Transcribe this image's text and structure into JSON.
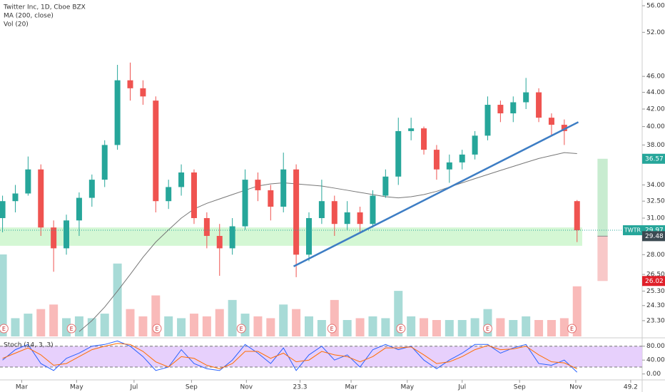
{
  "chart_data": {
    "type": "candlestick",
    "title": "Twitter Inc, 1D, Cboe BZX",
    "indicator_labels": [
      "MA (200, close)",
      "Vol (20)"
    ],
    "categories": [
      null,
      null,
      null,
      null,
      null,
      null,
      null,
      null,
      null,
      null,
      null,
      null,
      null,
      null,
      null,
      null,
      null,
      null,
      null,
      null,
      null,
      null,
      null,
      null,
      null,
      null,
      null,
      null,
      null,
      null,
      null,
      null,
      null,
      null,
      null,
      null,
      null,
      null,
      null,
      null,
      null,
      null,
      null,
      null,
      null,
      null
    ],
    "open": [
      31,
      32.5,
      33.2,
      35.5,
      30.2,
      28.5,
      30.8,
      32.8,
      34.5,
      38,
      45.5,
      44.5,
      43,
      32.5,
      33.8,
      35.2,
      31,
      29.5,
      28.5,
      30.3,
      34.5,
      33.5,
      32,
      35.5,
      28,
      31,
      32.5,
      30.5,
      31.5,
      30.5,
      33,
      34.8,
      39.5,
      39.8,
      37.5,
      35.5,
      36.2,
      37,
      39,
      42.5,
      41.5,
      42.8,
      44,
      41,
      40.2,
      32.5
    ],
    "high": [
      33,
      34,
      36.8,
      36,
      30.8,
      31.3,
      33.3,
      35,
      38.5,
      47.5,
      47.8,
      45.5,
      43.5,
      34.5,
      36,
      35.5,
      31.5,
      30.5,
      31,
      35.5,
      35.2,
      34,
      37.2,
      36,
      31.5,
      34.5,
      33,
      32.5,
      32,
      33.5,
      35.5,
      41,
      41,
      40,
      38,
      37,
      37.5,
      39.5,
      43.5,
      43,
      43.5,
      45.8,
      44.5,
      41.5,
      40.8,
      32.6
    ],
    "low": [
      29.8,
      31.5,
      33,
      29.5,
      26.7,
      28,
      29.5,
      32,
      33.8,
      37.5,
      43,
      42.5,
      31.5,
      31.8,
      33,
      30.5,
      28.5,
      26.4,
      28,
      30,
      32.5,
      30.8,
      31.5,
      26.3,
      27.5,
      30.5,
      29.5,
      30,
      29.7,
      30.2,
      32.8,
      34,
      38.5,
      37,
      34.5,
      34.2,
      35.5,
      36.5,
      38.5,
      40.5,
      40.5,
      42,
      40.5,
      39,
      38,
      29
    ],
    "close": [
      32.5,
      33.2,
      35.5,
      30.2,
      28.5,
      30.8,
      32.8,
      34.5,
      38,
      45.5,
      44.5,
      43.5,
      32.5,
      33.8,
      35.2,
      31,
      29.5,
      28.5,
      30.3,
      34.5,
      33.5,
      32,
      35.5,
      28,
      31,
      32.5,
      30.5,
      31.5,
      30.5,
      33,
      34.8,
      39.5,
      39.8,
      37.5,
      35.5,
      36.2,
      37,
      39,
      42.5,
      41.5,
      42.8,
      44,
      41,
      40.2,
      39.5,
      29.97
    ],
    "volume": [
      90,
      20,
      25,
      30,
      35,
      20,
      22,
      20,
      25,
      80,
      30,
      22,
      45,
      22,
      20,
      25,
      22,
      30,
      40,
      25,
      22,
      20,
      35,
      30,
      22,
      18,
      40,
      18,
      20,
      22,
      20,
      50,
      22,
      20,
      18,
      18,
      18,
      20,
      30,
      20,
      18,
      22,
      18,
      18,
      20,
      55
    ],
    "ma": [
      null,
      null,
      null,
      null,
      null,
      null,
      22.6,
      23.3,
      24.2,
      25.3,
      26.5,
      27.8,
      29,
      30,
      31,
      31.8,
      32.3,
      32.7,
      33.1,
      33.5,
      33.9,
      34.1,
      34.2,
      34.1,
      34,
      33.9,
      33.7,
      33.5,
      33.3,
      33.1,
      32.9,
      32.8,
      32.9,
      33.1,
      33.4,
      33.8,
      34.2,
      34.6,
      35,
      35.4,
      35.8,
      36.2,
      36.6,
      36.9,
      37.2,
      37.1
    ],
    "ma_color": "#777777",
    "up_color": "#26a69a",
    "down_color": "#ef5350",
    "xlim": [
      -0.2,
      50.1
    ],
    "xticks": [
      {
        "value": 1.5,
        "label": "Mar"
      },
      {
        "value": 5.8,
        "label": "May"
      },
      {
        "value": 10.3,
        "label": "Jul"
      },
      {
        "value": 14.8,
        "label": "Sep"
      },
      {
        "value": 19.1,
        "label": "Nov"
      },
      23.3,
      {
        "value": 27.3,
        "label": "Mar"
      },
      {
        "value": 31.7,
        "label": "May"
      },
      {
        "value": 36,
        "label": "Jul"
      },
      {
        "value": 40.5,
        "label": "Sep"
      },
      {
        "value": 44.9,
        "label": "Nov"
      },
      49.2
    ],
    "ylim": [
      22.3,
      56.9
    ],
    "log_scale": true,
    "grid": false,
    "yticks": [
      {
        "value": 56,
        "label": "56.00"
      },
      {
        "value": 52,
        "label": "52.00"
      },
      {
        "value": 46,
        "label": "46.00"
      },
      {
        "value": 44,
        "label": "44.00"
      },
      {
        "value": 42,
        "label": "42.00"
      },
      {
        "value": 40,
        "label": "40.00"
      },
      {
        "value": 38,
        "label": "38.00"
      },
      {
        "value": 34,
        "label": "34.00"
      },
      {
        "value": 32.5,
        "label": "32.50"
      },
      {
        "value": 31,
        "label": "31.00"
      },
      {
        "value": 28,
        "label": "28.00"
      },
      {
        "value": 26.5,
        "label": "26.50"
      },
      {
        "value": 25.3,
        "label": "25.30"
      },
      {
        "value": 24.3,
        "label": "24.30"
      },
      {
        "value": 23.3,
        "label": "23.30"
      }
    ],
    "trendline": {
      "x": [
        22.8,
        45.1
      ],
      "values": [
        27.1,
        40.5
      ],
      "color": "#3d7dc4"
    },
    "zone": {
      "x": [
        -0.2,
        45.4
      ],
      "values": [
        28.7,
        30.2
      ],
      "color": "#c9f5c9"
    },
    "position": {
      "x": [
        46.6,
        47.4
      ],
      "target": 36.57,
      "entry": 29.48,
      "stop": 26.02,
      "profit_color": "#c8ecd0",
      "loss_color": "#f8c8c8"
    },
    "symbol": "TWTR",
    "last_price": 29.97,
    "price_labels": [
      {
        "value": 36.57,
        "color": "#26a69a"
      },
      {
        "value": 29.48,
        "color": "#3c4a52"
      },
      {
        "value": 26.02,
        "color": "#e0202a"
      }
    ],
    "earnings": {
      "label": "E",
      "x": [
        0.1,
        5.4,
        12.1,
        18.7,
        25.8,
        31.2,
        38,
        44.6
      ]
    },
    "stoch": {
      "label": "Stoch (14, 3, 3)",
      "k": [
        40,
        70,
        85,
        30,
        10,
        45,
        60,
        80,
        85,
        95,
        80,
        50,
        10,
        20,
        70,
        30,
        15,
        10,
        40,
        85,
        60,
        30,
        75,
        10,
        55,
        80,
        40,
        55,
        20,
        70,
        85,
        70,
        80,
        40,
        15,
        40,
        60,
        85,
        85,
        60,
        75,
        85,
        30,
        25,
        40,
        5
      ],
      "d": [
        45,
        60,
        75,
        55,
        25,
        30,
        50,
        70,
        80,
        88,
        85,
        65,
        35,
        20,
        50,
        45,
        25,
        15,
        30,
        65,
        65,
        45,
        60,
        35,
        40,
        65,
        55,
        50,
        35,
        50,
        75,
        75,
        78,
        55,
        30,
        35,
        50,
        70,
        82,
        70,
        72,
        80,
        55,
        35,
        32,
        15
      ],
      "k_color": "#2962ff",
      "d_color": "#ff6d00",
      "band": [
        20,
        80
      ],
      "band_color": "#e1c4fb",
      "ylim": [
        -15,
        100
      ],
      "yticks": [
        {
          "value": 80,
          "label": "80.00"
        },
        {
          "value": 40,
          "label": "40.00"
        },
        {
          "value": 0,
          "label": "0.00"
        }
      ]
    }
  }
}
